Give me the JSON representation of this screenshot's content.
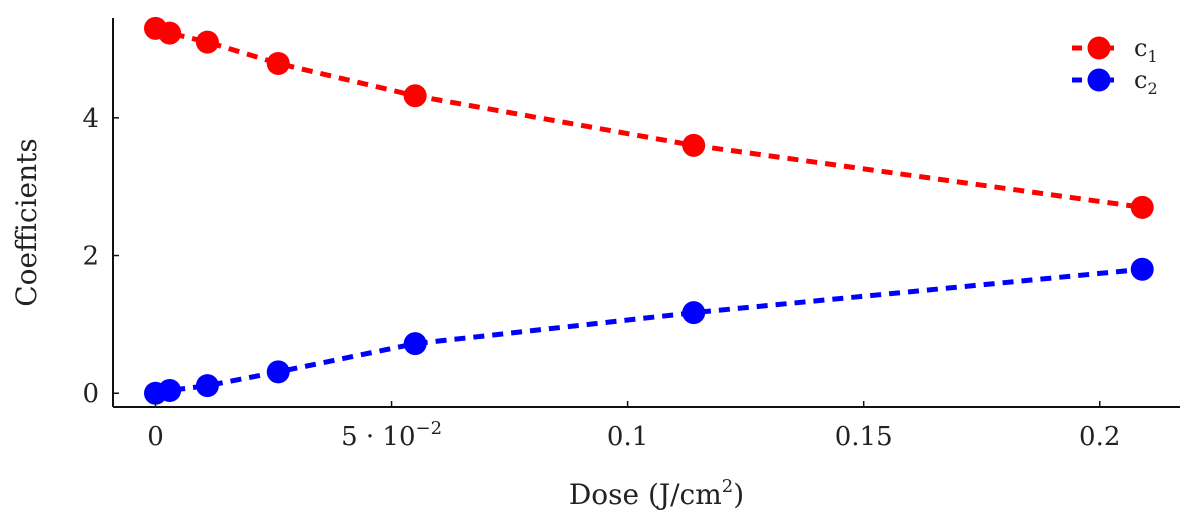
{
  "chart_data": {
    "type": "line",
    "x": [
      0,
      0.003,
      0.011,
      0.026,
      0.055,
      0.114,
      0.209
    ],
    "series": [
      {
        "name": "c",
        "subscript": "1",
        "color": "#ff0000",
        "values": [
          5.3,
          5.23,
          5.1,
          4.79,
          4.32,
          3.6,
          2.7
        ]
      },
      {
        "name": "c",
        "subscript": "2",
        "color": "#0000ff",
        "values": [
          0.0,
          0.04,
          0.11,
          0.31,
          0.72,
          1.17,
          1.8
        ]
      }
    ],
    "xlabel": "Dose (J/cm",
    "xlabel_superscript": "2",
    "xlabel_suffix": ")",
    "ylabel": "Coefficients",
    "xlim": [
      -0.009,
      0.217
    ],
    "ylim": [
      -0.2,
      5.45
    ],
    "xticks": [
      {
        "value": 0,
        "label": "0"
      },
      {
        "value": 0.05,
        "label": "5 · 10",
        "exponent": "−2"
      },
      {
        "value": 0.1,
        "label": "0.1"
      },
      {
        "value": 0.15,
        "label": "0.15"
      },
      {
        "value": 0.2,
        "label": "0.2"
      }
    ],
    "yticks": [
      {
        "value": 0,
        "label": "0"
      },
      {
        "value": 2,
        "label": "2"
      },
      {
        "value": 4,
        "label": "4"
      }
    ],
    "line_style": "dashed",
    "marker": "circle",
    "legend_position": "top-right",
    "grid": false
  }
}
